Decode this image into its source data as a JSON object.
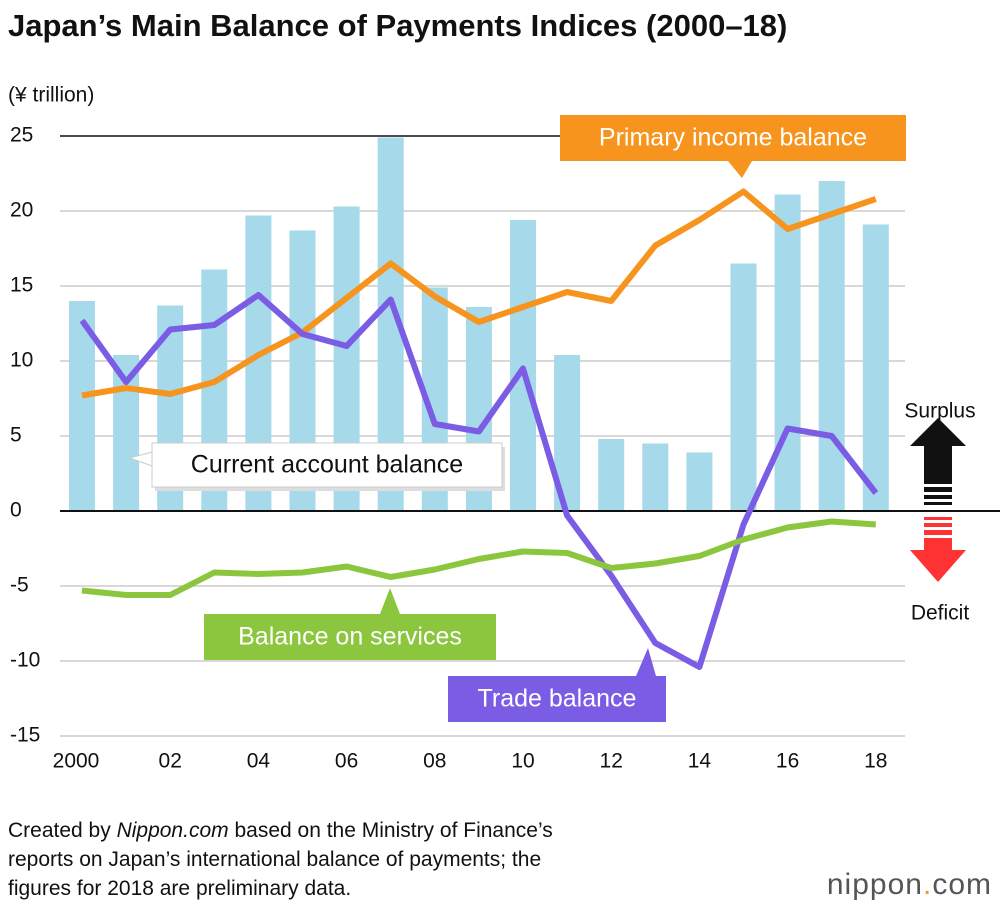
{
  "chart_data": {
    "type": "bar_line",
    "title": "Japan’s Main Balance of Payments Indices (2000–18)",
    "y_label": "(¥ trillion)",
    "categories": [
      "2000",
      null,
      "02",
      null,
      "04",
      null,
      "06",
      null,
      "08",
      null,
      "10",
      null,
      "12",
      null,
      "14",
      null,
      "16",
      null,
      "18"
    ],
    "ylim": [
      -15,
      25
    ],
    "yticks": [
      -15,
      -10,
      -5,
      0,
      5,
      10,
      15,
      20,
      25
    ],
    "grid": true,
    "series": [
      {
        "name": "Current account balance",
        "type": "bar",
        "color": "#a6d9ea",
        "values": [
          14.0,
          10.4,
          13.7,
          16.1,
          19.7,
          18.7,
          20.3,
          24.9,
          14.9,
          13.6,
          19.4,
          10.4,
          4.8,
          4.5,
          3.9,
          16.5,
          21.1,
          22.0,
          19.1
        ]
      },
      {
        "name": "Primary income balance",
        "type": "line",
        "color": "#f7941d",
        "values": [
          7.7,
          8.2,
          7.8,
          8.6,
          10.4,
          11.9,
          14.2,
          16.5,
          14.3,
          12.6,
          13.6,
          14.6,
          14.0,
          17.7,
          19.4,
          21.3,
          18.8,
          19.8,
          20.8
        ]
      },
      {
        "name": "Trade balance",
        "type": "line",
        "color": "#7b5ce5",
        "values": [
          12.7,
          8.6,
          12.1,
          12.4,
          14.4,
          11.8,
          11.0,
          14.1,
          5.8,
          5.3,
          9.5,
          -0.3,
          -4.3,
          -8.8,
          -10.4,
          -0.9,
          5.5,
          5.0,
          1.2
        ]
      },
      {
        "name": "Balance on services",
        "type": "line",
        "color": "#8cc63f",
        "values": [
          -5.3,
          -5.6,
          -5.6,
          -4.1,
          -4.2,
          -4.1,
          -3.7,
          -4.4,
          -3.9,
          -3.2,
          -2.7,
          -2.8,
          -3.8,
          -3.5,
          -3.0,
          -1.9,
          -1.1,
          -0.7,
          -0.9
        ]
      }
    ],
    "surplus_label": "Surplus",
    "deficit_label": "Deficit"
  },
  "note_lines": [
    [
      "Created by ",
      "Nippon.com",
      " based on the Ministry of Finance’s"
    ],
    [
      "reports on Japan’s international balance of payments; the"
    ],
    [
      "figures for 2018 are preliminary data."
    ]
  ],
  "logo": [
    "nippon",
    ".",
    "com"
  ]
}
